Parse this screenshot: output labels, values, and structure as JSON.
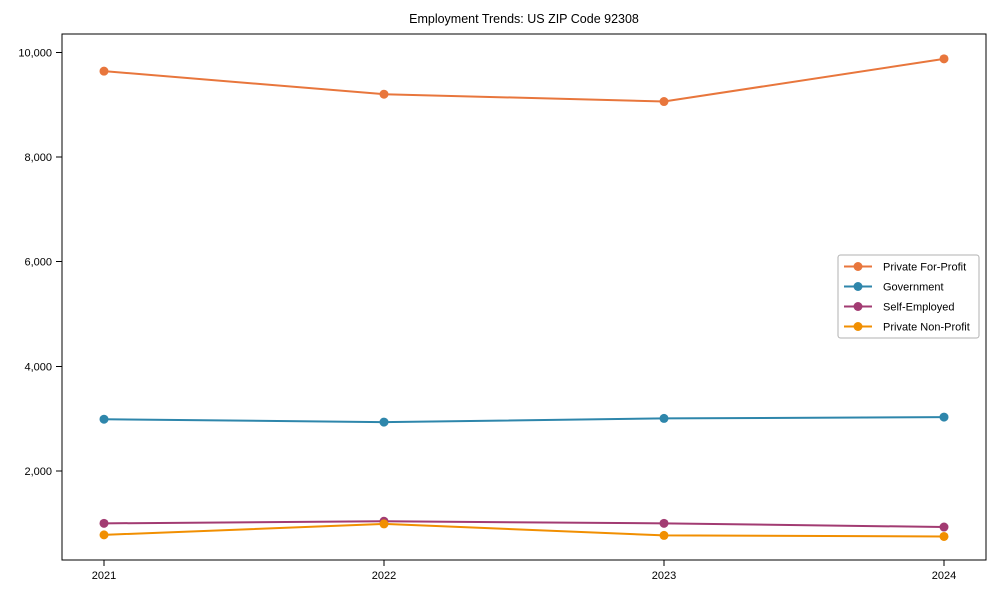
{
  "chart_data": {
    "type": "line",
    "title": "Employment Trends: US ZIP Code 92308",
    "xlabel": "",
    "ylabel": "",
    "x": [
      2021,
      2022,
      2023,
      2024
    ],
    "x_tick_labels": [
      "2021",
      "2022",
      "2023",
      "2024"
    ],
    "y_ticks": [
      {
        "value": 2000,
        "label": "2,000"
      },
      {
        "value": 4000,
        "label": "4,000"
      },
      {
        "value": 6000,
        "label": "6,000"
      },
      {
        "value": 8000,
        "label": "8,000"
      },
      {
        "value": 10000,
        "label": "10,000"
      }
    ],
    "series": [
      {
        "name": "Private For-Profit",
        "color": "#E8763C",
        "values": [
          9640,
          9200,
          9060,
          9875
        ]
      },
      {
        "name": "Government",
        "color": "#2E86AB",
        "values": [
          2990,
          2935,
          3005,
          3030
        ]
      },
      {
        "name": "Self-Employed",
        "color": "#A23B72",
        "values": [
          1000,
          1040,
          1000,
          930
        ]
      },
      {
        "name": "Private Non-Profit",
        "color": "#F18F01",
        "values": [
          780,
          990,
          770,
          750
        ]
      }
    ],
    "xlim": [
      2020.85,
      2024.15
    ],
    "ylim": [
      300,
      10350
    ],
    "grid": false,
    "legend_position": "center right",
    "legend_border_color": "#b0b0b0",
    "axis_color": "#000000",
    "background_color": "#ffffff"
  }
}
